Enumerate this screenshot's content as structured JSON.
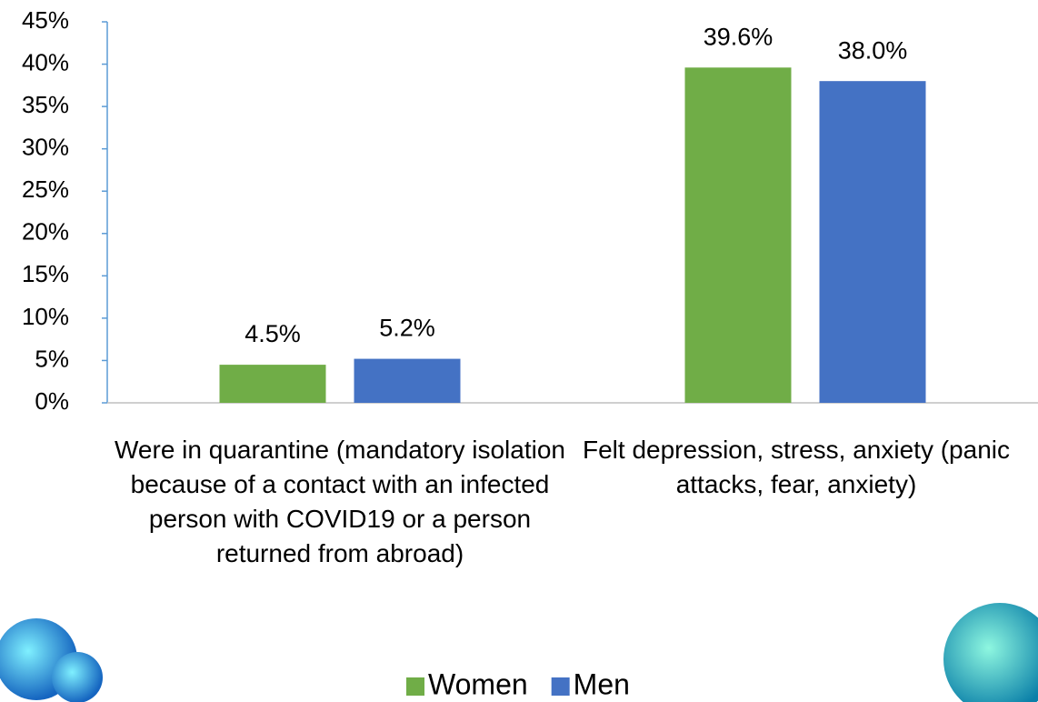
{
  "chart_data": {
    "type": "bar",
    "categories": [
      "Were in quarantine (mandatory isolation because of a contact with an infected person with COVID19 or a person returned from abroad)",
      "Felt depression, stress, anxiety (panic attacks, fear, anxiety)"
    ],
    "series": [
      {
        "name": "Women",
        "color": "#70ad47",
        "values": [
          4.5,
          39.6
        ],
        "value_labels": [
          "4.5%",
          "39.6%"
        ]
      },
      {
        "name": "Men",
        "color": "#4472c4",
        "values": [
          5.2,
          38.0
        ],
        "value_labels": [
          "5.2%",
          "38.0%"
        ]
      }
    ],
    "ylim": [
      0,
      45
    ],
    "yticks": [
      {
        "value": 0,
        "label": "0%"
      },
      {
        "value": 5,
        "label": "5%"
      },
      {
        "value": 10,
        "label": "10%"
      },
      {
        "value": 15,
        "label": "15%"
      },
      {
        "value": 20,
        "label": "20%"
      },
      {
        "value": 25,
        "label": "25%"
      },
      {
        "value": 30,
        "label": "30%"
      },
      {
        "value": 35,
        "label": "35%"
      },
      {
        "value": 40,
        "label": "40%"
      },
      {
        "value": 45,
        "label": "45%"
      }
    ],
    "legend": "bottom"
  }
}
